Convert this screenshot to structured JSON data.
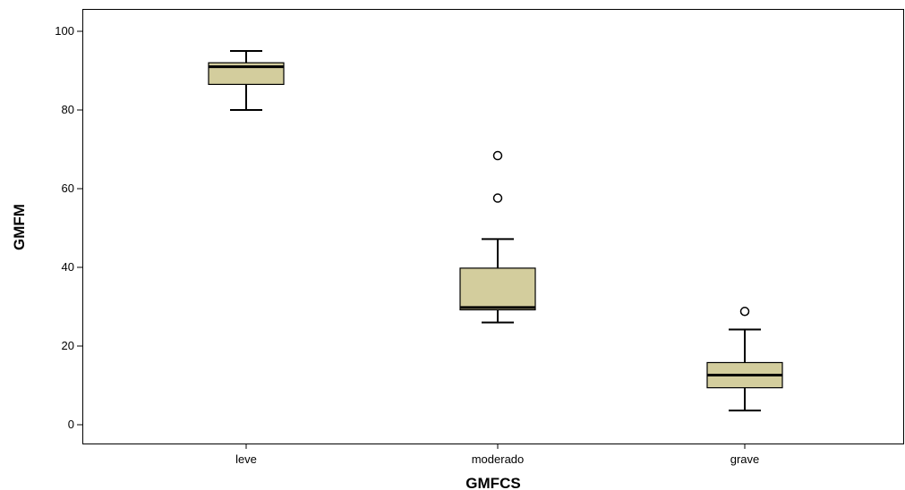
{
  "chart_data": {
    "type": "boxplot",
    "xlabel": "GMFCS",
    "ylabel": "GMFM",
    "ylim": [
      -5,
      105
    ],
    "yticks": [
      0,
      20,
      40,
      60,
      80,
      100
    ],
    "grid": false,
    "categories": [
      "leve",
      "moderado",
      "grave"
    ],
    "boxes": [
      {
        "category": "leve",
        "whisker_low": 80,
        "q1": 86.5,
        "median": 91,
        "q3": 92,
        "whisker_high": 95,
        "outliers": []
      },
      {
        "category": "moderado",
        "whisker_low": 26,
        "q1": 29.2,
        "median": 29.8,
        "q3": 39.8,
        "whisker_high": 47.2,
        "outliers": [
          57.6,
          68.4
        ]
      },
      {
        "category": "grave",
        "whisker_low": 3.6,
        "q1": 9.4,
        "median": 12.6,
        "q3": 15.8,
        "whisker_high": 24.2,
        "outliers": [
          28.8
        ]
      }
    ],
    "colors": {
      "box_fill": "#d3cd9d",
      "stroke": "#000000"
    }
  }
}
